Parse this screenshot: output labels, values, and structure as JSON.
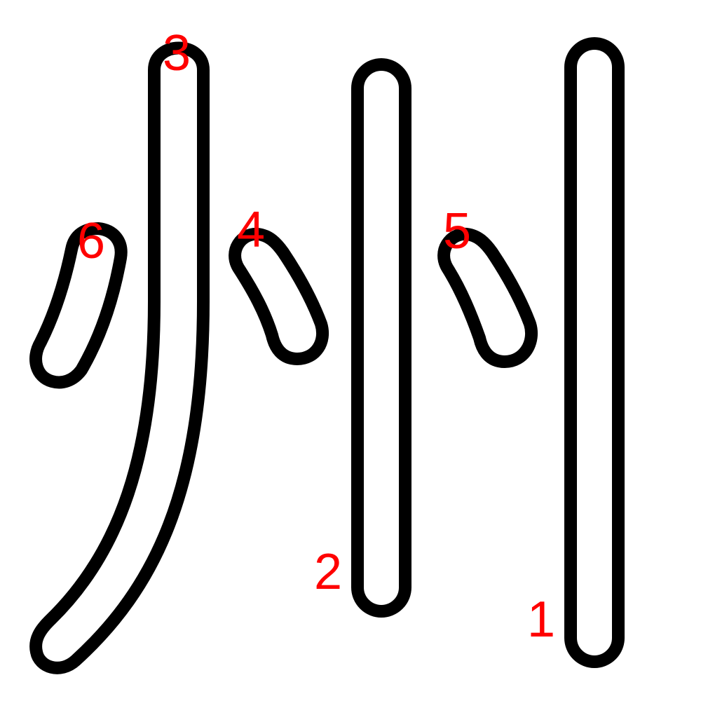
{
  "diagram": {
    "character": "州",
    "colors": {
      "outline": "#000000",
      "fill": "#ffffff",
      "number": "#ff0000"
    },
    "strokes": [
      {
        "order": "1",
        "label": "1",
        "shape": "vertical-line-right"
      },
      {
        "order": "2",
        "label": "2",
        "shape": "vertical-line-middle"
      },
      {
        "order": "3",
        "label": "3",
        "shape": "left-falling-sweep"
      },
      {
        "order": "4",
        "label": "4",
        "shape": "dot-left-of-middle"
      },
      {
        "order": "5",
        "label": "5",
        "shape": "dot-right-of-middle"
      },
      {
        "order": "6",
        "label": "6",
        "shape": "dot-far-left"
      }
    ]
  }
}
